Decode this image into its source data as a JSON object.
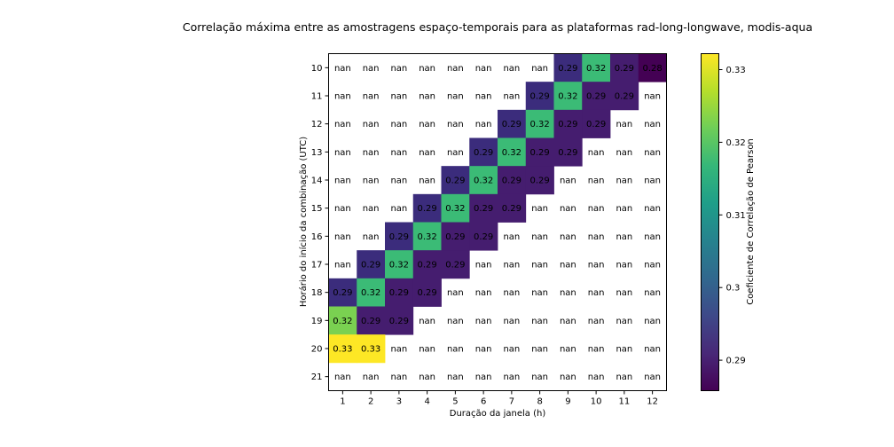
{
  "chart_data": {
    "type": "heatmap",
    "title": "Correlação máxima entre as amostragens espaço-temporais para as plataformas rad-long-longwave, modis-aqua",
    "xlabel": "Duração da janela (h)",
    "ylabel": "Horário do início da combinação (UTC)",
    "x_categories": [
      "1",
      "2",
      "3",
      "4",
      "5",
      "6",
      "7",
      "8",
      "9",
      "10",
      "11",
      "12"
    ],
    "y_categories": [
      "10",
      "11",
      "12",
      "13",
      "14",
      "15",
      "16",
      "17",
      "18",
      "19",
      "20",
      "21"
    ],
    "values": [
      [
        null,
        null,
        null,
        null,
        null,
        null,
        null,
        null,
        0.29,
        0.32,
        0.29,
        0.28
      ],
      [
        null,
        null,
        null,
        null,
        null,
        null,
        null,
        0.29,
        0.32,
        0.29,
        0.29,
        null
      ],
      [
        null,
        null,
        null,
        null,
        null,
        null,
        0.29,
        0.32,
        0.29,
        0.29,
        null,
        null
      ],
      [
        null,
        null,
        null,
        null,
        null,
        0.29,
        0.32,
        0.29,
        0.29,
        null,
        null,
        null
      ],
      [
        null,
        null,
        null,
        null,
        0.29,
        0.32,
        0.29,
        0.29,
        null,
        null,
        null,
        null
      ],
      [
        null,
        null,
        null,
        0.29,
        0.32,
        0.29,
        0.29,
        null,
        null,
        null,
        null,
        null
      ],
      [
        null,
        null,
        0.29,
        0.32,
        0.29,
        0.29,
        null,
        null,
        null,
        null,
        null,
        null
      ],
      [
        null,
        0.29,
        0.32,
        0.29,
        0.29,
        null,
        null,
        null,
        null,
        null,
        null,
        null
      ],
      [
        0.29,
        0.32,
        0.29,
        0.29,
        null,
        null,
        null,
        null,
        null,
        null,
        null,
        null
      ],
      [
        0.32,
        0.29,
        0.29,
        null,
        null,
        null,
        null,
        null,
        null,
        null,
        null,
        null
      ],
      [
        0.33,
        0.33,
        null,
        null,
        null,
        null,
        null,
        null,
        null,
        null,
        null,
        null
      ],
      [
        null,
        null,
        null,
        null,
        null,
        null,
        null,
        null,
        null,
        null,
        null,
        null
      ]
    ],
    "labels": [
      [
        "nan",
        "nan",
        "nan",
        "nan",
        "nan",
        "nan",
        "nan",
        "nan",
        "0.29",
        "0.32",
        "0.29",
        "0.28"
      ],
      [
        "nan",
        "nan",
        "nan",
        "nan",
        "nan",
        "nan",
        "nan",
        "0.29",
        "0.32",
        "0.29",
        "0.29",
        "nan"
      ],
      [
        "nan",
        "nan",
        "nan",
        "nan",
        "nan",
        "nan",
        "0.29",
        "0.32",
        "0.29",
        "0.29",
        "nan",
        "nan"
      ],
      [
        "nan",
        "nan",
        "nan",
        "nan",
        "nan",
        "0.29",
        "0.32",
        "0.29",
        "0.29",
        "nan",
        "nan",
        "nan"
      ],
      [
        "nan",
        "nan",
        "nan",
        "nan",
        "0.29",
        "0.32",
        "0.29",
        "0.29",
        "nan",
        "nan",
        "nan",
        "nan"
      ],
      [
        "nan",
        "nan",
        "nan",
        "0.29",
        "0.32",
        "0.29",
        "0.29",
        "nan",
        "nan",
        "nan",
        "nan",
        "nan"
      ],
      [
        "nan",
        "nan",
        "0.29",
        "0.32",
        "0.29",
        "0.29",
        "nan",
        "nan",
        "nan",
        "nan",
        "nan",
        "nan"
      ],
      [
        "nan",
        "0.29",
        "0.32",
        "0.29",
        "0.29",
        "nan",
        "nan",
        "nan",
        "nan",
        "nan",
        "nan",
        "nan"
      ],
      [
        "0.29",
        "0.32",
        "0.29",
        "0.29",
        "nan",
        "nan",
        "nan",
        "nan",
        "nan",
        "nan",
        "nan",
        "nan"
      ],
      [
        "0.32",
        "0.29",
        "0.29",
        "nan",
        "nan",
        "nan",
        "nan",
        "nan",
        "nan",
        "nan",
        "nan",
        "nan"
      ],
      [
        "0.33",
        "0.33",
        "nan",
        "nan",
        "nan",
        "nan",
        "nan",
        "nan",
        "nan",
        "nan",
        "nan",
        "nan"
      ],
      [
        "nan",
        "nan",
        "nan",
        "nan",
        "nan",
        "nan",
        "nan",
        "nan",
        "nan",
        "nan",
        "nan",
        "nan"
      ]
    ],
    "colors": [
      [
        "",
        "",
        "",
        "",
        "",
        "",
        "",
        "",
        "#3b2c7c",
        "#3bbb76",
        "#451d6f",
        "#440154"
      ],
      [
        "",
        "",
        "",
        "",
        "",
        "",
        "",
        "#3b2c7c",
        "#3bbb76",
        "#451d6f",
        "#451d6f",
        ""
      ],
      [
        "",
        "",
        "",
        "",
        "",
        "",
        "#3b2c7c",
        "#3bbb76",
        "#451d6f",
        "#451d6f",
        "",
        ""
      ],
      [
        "",
        "",
        "",
        "",
        "",
        "#3b2c7c",
        "#3bbb76",
        "#451d6f",
        "#451d6f",
        "",
        "",
        ""
      ],
      [
        "",
        "",
        "",
        "",
        "#3b2c7c",
        "#3bbb76",
        "#451d6f",
        "#451d6f",
        "",
        "",
        "",
        ""
      ],
      [
        "",
        "",
        "",
        "#3b2c7c",
        "#3bbb76",
        "#451d6f",
        "#451d6f",
        "",
        "",
        "",
        "",
        ""
      ],
      [
        "",
        "",
        "#3b2c7c",
        "#3bbb76",
        "#451d6f",
        "#451d6f",
        "",
        "",
        "",
        "",
        "",
        ""
      ],
      [
        "",
        "#3b2c7c",
        "#3bbb76",
        "#451d6f",
        "#451d6f",
        "",
        "",
        "",
        "",
        "",
        "",
        ""
      ],
      [
        "#3b2c7c",
        "#3bbb76",
        "#451d6f",
        "#451d6f",
        "",
        "",
        "",
        "",
        "",
        "",
        "",
        ""
      ],
      [
        "#7ad151",
        "#451d6f",
        "#451d6f",
        "",
        "",
        "",
        "",
        "",
        "",
        "",
        "",
        ""
      ],
      [
        "#fde725",
        "#fde725",
        "",
        "",
        "",
        "",
        "",
        "",
        "",
        "",
        "",
        ""
      ],
      [
        "",
        "",
        "",
        "",
        "",
        "",
        "",
        "",
        "",
        "",
        "",
        ""
      ]
    ],
    "colorbar": {
      "label": "Coeficiente de Correlação de Pearson",
      "min": 0.2858,
      "max": 0.3322,
      "ticks": [
        0.29,
        0.3,
        0.31,
        0.32,
        0.33
      ],
      "tick_labels": [
        "0.29",
        "0.3",
        "0.31",
        "0.32",
        "0.33"
      ],
      "colormap": [
        "#440154",
        "#482878",
        "#3e4989",
        "#31688e",
        "#26828e",
        "#1f9e89",
        "#35b779",
        "#6ece58",
        "#b5de2b",
        "#fde725"
      ]
    },
    "grid": false
  }
}
